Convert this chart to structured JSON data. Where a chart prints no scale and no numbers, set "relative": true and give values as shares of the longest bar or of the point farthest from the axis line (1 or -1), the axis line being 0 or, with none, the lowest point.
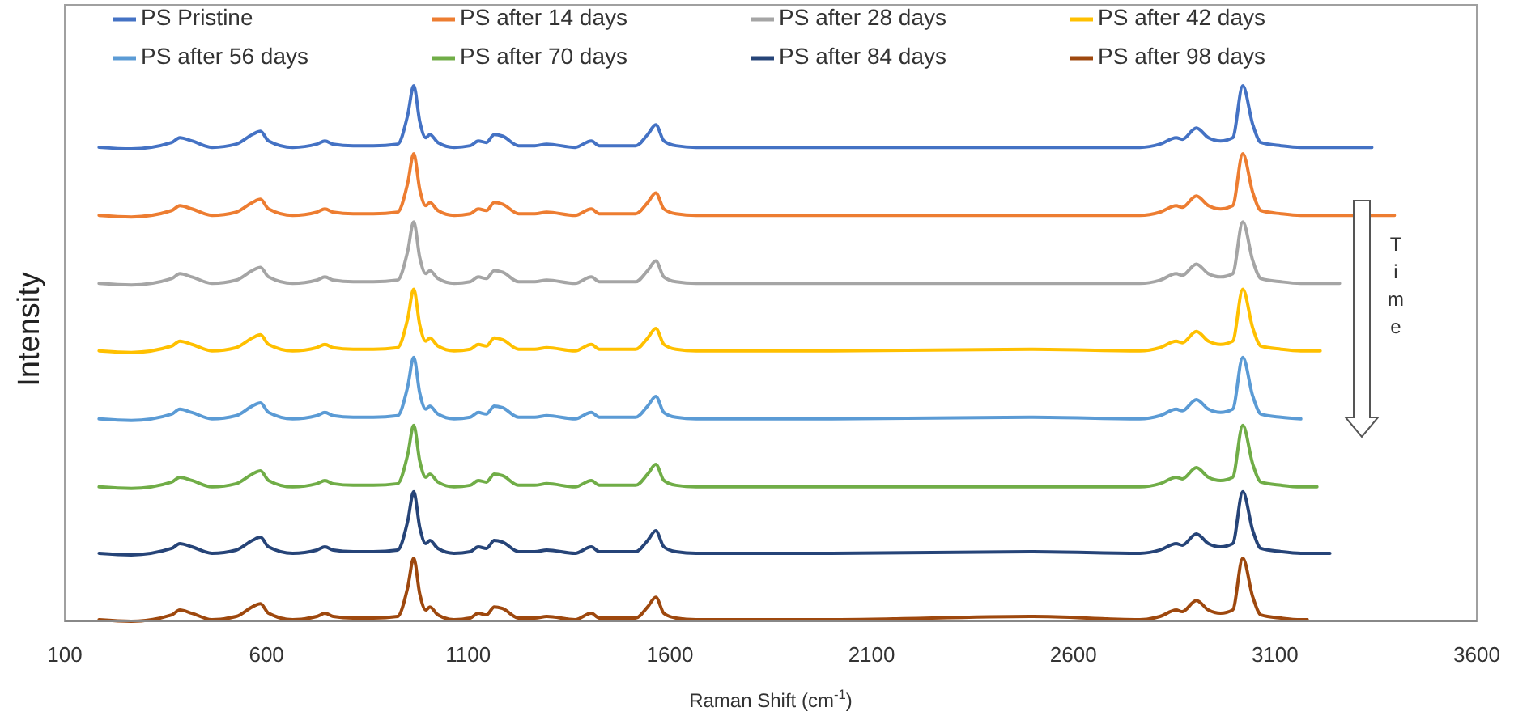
{
  "chart_data": {
    "type": "line",
    "relative": true,
    "xlabel": "Raman Shift (cm$^{-1}$)",
    "ylabel": "Intensity",
    "xlim": [
      100,
      3600
    ],
    "xticks": [
      100,
      600,
      1100,
      1600,
      2100,
      2600,
      3100,
      3600
    ],
    "legend": "top",
    "grid": false,
    "marker": "none",
    "line_style": "solid",
    "annotations": [
      "Time"
    ],
    "x": [
      185,
      265,
      365,
      385,
      415,
      465,
      525,
      565,
      585,
      605,
      665,
      725,
      745,
      765,
      815,
      865,
      925,
      950,
      965,
      980,
      995,
      1005,
      1025,
      1065,
      1105,
      1125,
      1145,
      1165,
      1185,
      1225,
      1265,
      1295,
      1365,
      1405,
      1425,
      1515,
      1545,
      1565,
      1585,
      1615,
      1665,
      2000,
      2500,
      2765,
      2815,
      2855,
      2870,
      2905,
      2935,
      2965,
      2995,
      3020,
      3045,
      3065,
      3115,
      3164,
      3180,
      3204,
      3212,
      3236,
      3260,
      3340,
      3396
    ],
    "series": [
      {
        "name": "PS Pristine",
        "color": "#4472c4",
        "values": [
          0.885,
          0.882,
          0.894,
          0.903,
          0.897,
          0.885,
          0.891,
          0.909,
          0.915,
          0.897,
          0.885,
          0.891,
          0.897,
          0.891,
          0.888,
          0.888,
          0.891,
          0.945,
          1.0,
          0.933,
          0.903,
          0.909,
          0.894,
          0.885,
          0.888,
          0.897,
          0.894,
          0.909,
          0.906,
          0.888,
          0.888,
          0.891,
          0.885,
          0.897,
          0.888,
          0.888,
          0.909,
          0.927,
          0.897,
          0.888,
          0.885,
          0.885,
          0.885,
          0.885,
          0.891,
          0.903,
          0.9,
          0.921,
          0.903,
          0.897,
          0.903,
          1.0,
          0.927,
          0.894,
          0.888,
          0.885,
          0.885,
          0.885,
          0.885,
          0.885,
          0.885,
          0.885,
          null
        ]
      },
      {
        "name": "PS after 14 days",
        "color": "#ed7d31",
        "values": [
          0.758,
          0.755,
          0.767,
          0.776,
          0.77,
          0.758,
          0.764,
          0.782,
          0.788,
          0.77,
          0.758,
          0.764,
          0.77,
          0.764,
          0.761,
          0.761,
          0.764,
          0.818,
          0.873,
          0.806,
          0.776,
          0.782,
          0.767,
          0.758,
          0.761,
          0.77,
          0.767,
          0.782,
          0.779,
          0.761,
          0.761,
          0.764,
          0.758,
          0.77,
          0.761,
          0.761,
          0.782,
          0.8,
          0.77,
          0.761,
          0.758,
          0.758,
          0.758,
          0.758,
          0.764,
          0.776,
          0.773,
          0.794,
          0.776,
          0.77,
          0.776,
          0.873,
          0.8,
          0.767,
          0.761,
          0.758,
          0.758,
          0.758,
          0.758,
          0.758,
          0.758,
          0.758,
          0.758
        ]
      },
      {
        "name": "PS after 28 days",
        "color": "#a5a5a5",
        "values": [
          0.631,
          0.628,
          0.64,
          0.649,
          0.643,
          0.631,
          0.637,
          0.655,
          0.661,
          0.643,
          0.631,
          0.637,
          0.643,
          0.637,
          0.634,
          0.634,
          0.637,
          0.691,
          0.746,
          0.679,
          0.649,
          0.655,
          0.64,
          0.631,
          0.634,
          0.643,
          0.64,
          0.655,
          0.652,
          0.634,
          0.634,
          0.637,
          0.631,
          0.643,
          0.634,
          0.634,
          0.655,
          0.673,
          0.643,
          0.634,
          0.631,
          0.631,
          0.631,
          0.631,
          0.637,
          0.649,
          0.646,
          0.667,
          0.649,
          0.643,
          0.649,
          0.746,
          0.673,
          0.64,
          0.634,
          0.631,
          0.631,
          0.631,
          0.631,
          0.631,
          0.631,
          null,
          null
        ]
      },
      {
        "name": "PS after 42 days",
        "color": "#ffc000",
        "values": [
          0.505,
          0.502,
          0.514,
          0.523,
          0.517,
          0.505,
          0.511,
          0.529,
          0.535,
          0.517,
          0.505,
          0.511,
          0.517,
          0.511,
          0.508,
          0.508,
          0.511,
          0.565,
          0.62,
          0.553,
          0.523,
          0.529,
          0.514,
          0.505,
          0.508,
          0.517,
          0.514,
          0.529,
          0.526,
          0.508,
          0.508,
          0.511,
          0.505,
          0.517,
          0.508,
          0.508,
          0.529,
          0.547,
          0.517,
          0.508,
          0.505,
          0.505,
          0.508,
          0.505,
          0.511,
          0.523,
          0.52,
          0.541,
          0.523,
          0.517,
          0.523,
          0.62,
          0.547,
          0.514,
          0.508,
          0.505,
          0.505,
          0.505,
          0.505,
          null,
          null,
          null,
          null
        ]
      },
      {
        "name": "PS after 56 days",
        "color": "#5b9bd5",
        "values": [
          0.378,
          0.375,
          0.387,
          0.396,
          0.39,
          0.378,
          0.384,
          0.402,
          0.408,
          0.39,
          0.378,
          0.384,
          0.39,
          0.384,
          0.381,
          0.381,
          0.384,
          0.438,
          0.493,
          0.426,
          0.396,
          0.402,
          0.387,
          0.378,
          0.381,
          0.39,
          0.387,
          0.402,
          0.399,
          0.381,
          0.381,
          0.384,
          0.378,
          0.39,
          0.381,
          0.381,
          0.402,
          0.42,
          0.39,
          0.381,
          0.378,
          0.378,
          0.381,
          0.378,
          0.384,
          0.396,
          0.393,
          0.414,
          0.396,
          0.39,
          0.396,
          0.493,
          0.42,
          0.387,
          0.381,
          0.378,
          null,
          null,
          null,
          null,
          null,
          null,
          null
        ]
      },
      {
        "name": "PS after 70 days",
        "color": "#70ad47",
        "values": [
          0.251,
          0.248,
          0.26,
          0.269,
          0.263,
          0.251,
          0.257,
          0.275,
          0.281,
          0.263,
          0.251,
          0.257,
          0.263,
          0.257,
          0.254,
          0.254,
          0.257,
          0.311,
          0.366,
          0.299,
          0.269,
          0.275,
          0.26,
          0.251,
          0.254,
          0.263,
          0.26,
          0.275,
          0.272,
          0.254,
          0.254,
          0.257,
          0.251,
          0.263,
          0.254,
          0.254,
          0.275,
          0.293,
          0.263,
          0.254,
          0.251,
          0.251,
          0.251,
          0.251,
          0.257,
          0.269,
          0.266,
          0.287,
          0.269,
          0.263,
          0.269,
          0.366,
          0.293,
          0.26,
          0.254,
          0.251,
          0.251,
          0.251,
          null,
          null,
          null,
          null,
          null
        ]
      },
      {
        "name": "PS after 84 days",
        "color": "#264478",
        "values": [
          0.127,
          0.124,
          0.136,
          0.145,
          0.139,
          0.127,
          0.133,
          0.151,
          0.157,
          0.139,
          0.127,
          0.133,
          0.139,
          0.133,
          0.13,
          0.13,
          0.133,
          0.187,
          0.242,
          0.175,
          0.145,
          0.151,
          0.136,
          0.127,
          0.13,
          0.139,
          0.136,
          0.151,
          0.148,
          0.13,
          0.13,
          0.133,
          0.127,
          0.139,
          0.13,
          0.13,
          0.151,
          0.169,
          0.139,
          0.13,
          0.127,
          0.127,
          0.13,
          0.127,
          0.133,
          0.145,
          0.142,
          0.163,
          0.145,
          0.139,
          0.145,
          0.242,
          0.169,
          0.136,
          0.13,
          0.127,
          0.127,
          0.127,
          0.127,
          0.127,
          null,
          null,
          null
        ]
      },
      {
        "name": "PS after 98 days",
        "color": "#9e480e",
        "values": [
          0.003,
          0,
          0.012,
          0.021,
          0.015,
          0.003,
          0.009,
          0.027,
          0.033,
          0.015,
          0.003,
          0.009,
          0.015,
          0.009,
          0.006,
          0.006,
          0.009,
          0.063,
          0.118,
          0.051,
          0.021,
          0.027,
          0.012,
          0.003,
          0.006,
          0.015,
          0.012,
          0.027,
          0.024,
          0.006,
          0.006,
          0.009,
          0.003,
          0.015,
          0.006,
          0.006,
          0.027,
          0.045,
          0.015,
          0.006,
          0.003,
          0.003,
          0.009,
          0.003,
          0.009,
          0.021,
          0.018,
          0.039,
          0.021,
          0.015,
          0.021,
          0.118,
          0.045,
          0.012,
          0.006,
          0.003,
          0.003,
          null,
          null,
          null,
          null,
          null,
          null
        ]
      }
    ]
  }
}
